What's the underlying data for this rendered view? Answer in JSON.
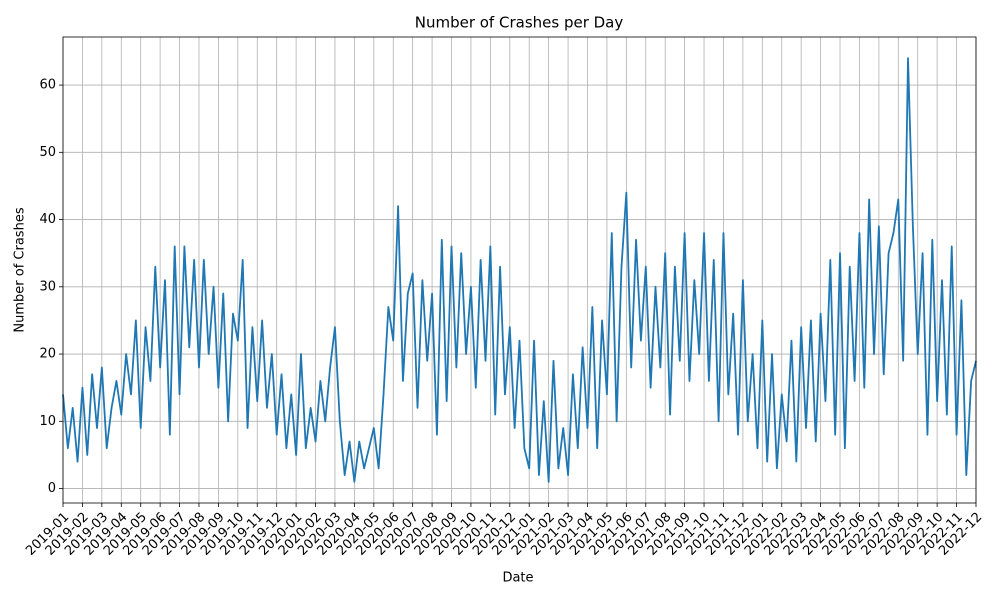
{
  "chart_data": {
    "type": "line",
    "title": "Number of Crashes per Day",
    "xlabel": "Date",
    "ylabel": "Number of Crashes",
    "color": "#1f77b4",
    "grid": true,
    "x": [
      0,
      0.25,
      0.5,
      0.75,
      1,
      1.25,
      1.5,
      1.75,
      2,
      2.25,
      2.5,
      2.75,
      3,
      3.25,
      3.5,
      3.75,
      4,
      4.25,
      4.5,
      4.75,
      5,
      5.25,
      5.5,
      5.75,
      6,
      6.25,
      6.5,
      6.75,
      7,
      7.25,
      7.5,
      7.75,
      8,
      8.25,
      8.5,
      8.75,
      9,
      9.25,
      9.5,
      9.75,
      10,
      10.25,
      10.5,
      10.75,
      11,
      11.25,
      11.5,
      11.75,
      12,
      12.25,
      12.5,
      12.75,
      13,
      13.25,
      13.5,
      13.75,
      14,
      14.25,
      14.5,
      14.75,
      15,
      15.25,
      15.5,
      15.75,
      16,
      16.25,
      16.5,
      16.75,
      17,
      17.25,
      17.5,
      17.75,
      18,
      18.25,
      18.5,
      18.75,
      19,
      19.25,
      19.5,
      19.75,
      20,
      20.25,
      20.5,
      20.75,
      21,
      21.25,
      21.5,
      21.75,
      22,
      22.25,
      22.5,
      22.75,
      23,
      23.25,
      23.5,
      23.75,
      24,
      24.25,
      24.5,
      24.75,
      25,
      25.25,
      25.5,
      25.75,
      26,
      26.25,
      26.5,
      26.75,
      27,
      27.25,
      27.5,
      27.75,
      28,
      28.25,
      28.5,
      28.75,
      29,
      29.25,
      29.5,
      29.75,
      30,
      30.25,
      30.5,
      30.75,
      31,
      31.25,
      31.5,
      31.75,
      32,
      32.25,
      32.5,
      32.75,
      33,
      33.25,
      33.5,
      33.75,
      34,
      34.25,
      34.5,
      34.75,
      35,
      35.25,
      35.5,
      35.75,
      36,
      36.25,
      36.5,
      36.75,
      37,
      37.25,
      37.5,
      37.75,
      38,
      38.25,
      38.5,
      38.75,
      39,
      39.25,
      39.5,
      39.75,
      40,
      40.25,
      40.5,
      40.75,
      41,
      41.25,
      41.5,
      41.75,
      42,
      42.25,
      42.5,
      42.75,
      43,
      43.25,
      43.5,
      43.75,
      44,
      44.25,
      44.5,
      44.75,
      45,
      45.25,
      45.5,
      45.75,
      46,
      46.25,
      46.5,
      46.75,
      47
    ],
    "values": [
      14,
      6,
      12,
      4,
      15,
      5,
      17,
      9,
      18,
      6,
      12,
      16,
      11,
      20,
      14,
      25,
      9,
      24,
      16,
      33,
      18,
      31,
      8,
      36,
      14,
      36,
      21,
      34,
      18,
      34,
      20,
      30,
      15,
      29,
      10,
      26,
      22,
      34,
      9,
      24,
      13,
      25,
      12,
      20,
      8,
      17,
      6,
      14,
      5,
      20,
      6,
      12,
      7,
      16,
      10,
      18,
      24,
      10,
      2,
      7,
      1,
      7,
      3,
      6,
      9,
      3,
      14,
      27,
      22,
      42,
      16,
      29,
      32,
      12,
      31,
      19,
      29,
      8,
      37,
      13,
      36,
      18,
      35,
      20,
      30,
      15,
      34,
      19,
      36,
      11,
      33,
      14,
      24,
      9,
      22,
      6,
      3,
      22,
      2,
      13,
      1,
      19,
      3,
      9,
      2,
      17,
      6,
      21,
      9,
      27,
      6,
      25,
      14,
      38,
      10,
      33,
      44,
      18,
      37,
      22,
      33,
      15,
      30,
      18,
      35,
      11,
      33,
      19,
      38,
      16,
      31,
      20,
      38,
      16,
      34,
      10,
      38,
      14,
      26,
      8,
      31,
      10,
      20,
      6,
      25,
      4,
      20,
      3,
      14,
      7,
      22,
      4,
      24,
      9,
      25,
      7,
      26,
      13,
      34,
      8,
      35,
      6,
      33,
      16,
      38,
      15,
      43,
      20,
      39,
      17,
      35,
      38,
      43,
      19,
      64,
      39,
      20,
      35,
      8,
      37,
      13,
      31,
      11,
      36,
      8,
      28,
      2,
      16,
      19
    ],
    "xlim": [
      0,
      47
    ],
    "xticks": [
      {
        "value": 0,
        "label": "2019-01"
      },
      {
        "value": 1,
        "label": "2019-02"
      },
      {
        "value": 2,
        "label": "2019-03"
      },
      {
        "value": 3,
        "label": "2019-04"
      },
      {
        "value": 4,
        "label": "2019-05"
      },
      {
        "value": 5,
        "label": "2019-06"
      },
      {
        "value": 6,
        "label": "2019-07"
      },
      {
        "value": 7,
        "label": "2019-08"
      },
      {
        "value": 8,
        "label": "2019-09"
      },
      {
        "value": 9,
        "label": "2019-10"
      },
      {
        "value": 10,
        "label": "2019-11"
      },
      {
        "value": 11,
        "label": "2019-12"
      },
      {
        "value": 12,
        "label": "2020-01"
      },
      {
        "value": 13,
        "label": "2020-02"
      },
      {
        "value": 14,
        "label": "2020-03"
      },
      {
        "value": 15,
        "label": "2020-04"
      },
      {
        "value": 16,
        "label": "2020-05"
      },
      {
        "value": 17,
        "label": "2020-06"
      },
      {
        "value": 18,
        "label": "2020-07"
      },
      {
        "value": 19,
        "label": "2020-08"
      },
      {
        "value": 20,
        "label": "2020-09"
      },
      {
        "value": 21,
        "label": "2020-10"
      },
      {
        "value": 22,
        "label": "2020-11"
      },
      {
        "value": 23,
        "label": "2020-12"
      },
      {
        "value": 24,
        "label": "2021-01"
      },
      {
        "value": 25,
        "label": "2021-02"
      },
      {
        "value": 26,
        "label": "2021-03"
      },
      {
        "value": 27,
        "label": "2021-04"
      },
      {
        "value": 28,
        "label": "2021-05"
      },
      {
        "value": 29,
        "label": "2021-06"
      },
      {
        "value": 30,
        "label": "2021-07"
      },
      {
        "value": 31,
        "label": "2021-08"
      },
      {
        "value": 32,
        "label": "2021-09"
      },
      {
        "value": 33,
        "label": "2021-10"
      },
      {
        "value": 34,
        "label": "2021-11"
      },
      {
        "value": 35,
        "label": "2021-12"
      },
      {
        "value": 36,
        "label": "2022-01"
      },
      {
        "value": 37,
        "label": "2022-02"
      },
      {
        "value": 38,
        "label": "2022-03"
      },
      {
        "value": 39,
        "label": "2022-04"
      },
      {
        "value": 40,
        "label": "2022-05"
      },
      {
        "value": 41,
        "label": "2022-06"
      },
      {
        "value": 42,
        "label": "2022-07"
      },
      {
        "value": 43,
        "label": "2022-08"
      },
      {
        "value": 44,
        "label": "2022-09"
      },
      {
        "value": 45,
        "label": "2022-10"
      },
      {
        "value": 46,
        "label": "2022-11"
      },
      {
        "value": 47,
        "label": "2022-12"
      }
    ],
    "ylim": [
      -2.15,
      67.15
    ],
    "yticks": [
      0,
      10,
      20,
      30,
      40,
      50,
      60
    ]
  }
}
